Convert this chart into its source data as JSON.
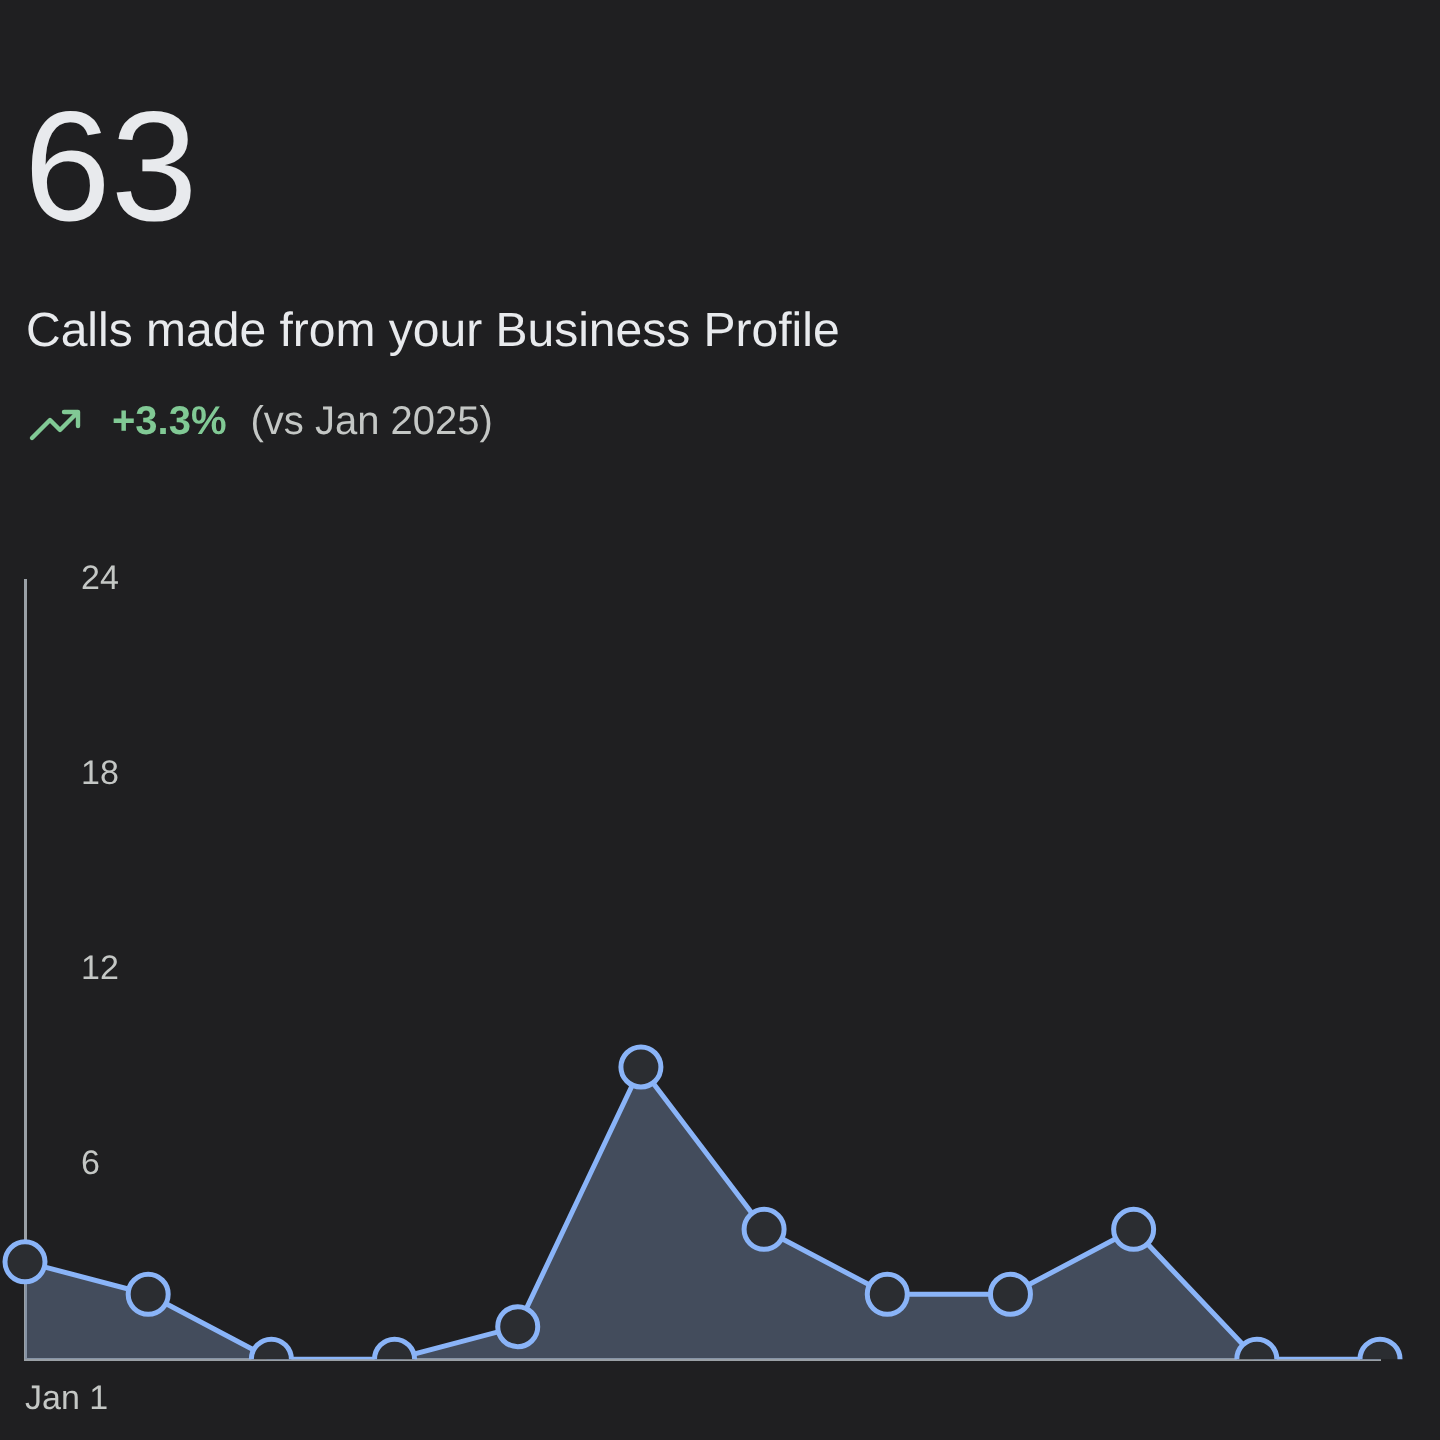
{
  "chart_data": {
    "type": "area",
    "title": "63",
    "subtitle": "Calls made from your Business Profile",
    "annotations": [
      "+3.3%",
      "(vs Jan 2025)"
    ],
    "categories": [
      "Jan 1",
      null,
      null,
      null,
      null,
      null,
      null,
      null,
      null,
      null,
      null,
      null
    ],
    "series": [
      {
        "color": "#8ab4f8",
        "values": [
          3,
          2,
          0,
          0,
          1,
          9,
          4,
          2,
          2,
          4,
          0,
          0
        ]
      }
    ],
    "ylim": [
      0,
      24
    ],
    "yticks": [
      6,
      12,
      18,
      24
    ],
    "grid": false,
    "legend": false,
    "marker": "circle",
    "line_style": "solid"
  }
}
